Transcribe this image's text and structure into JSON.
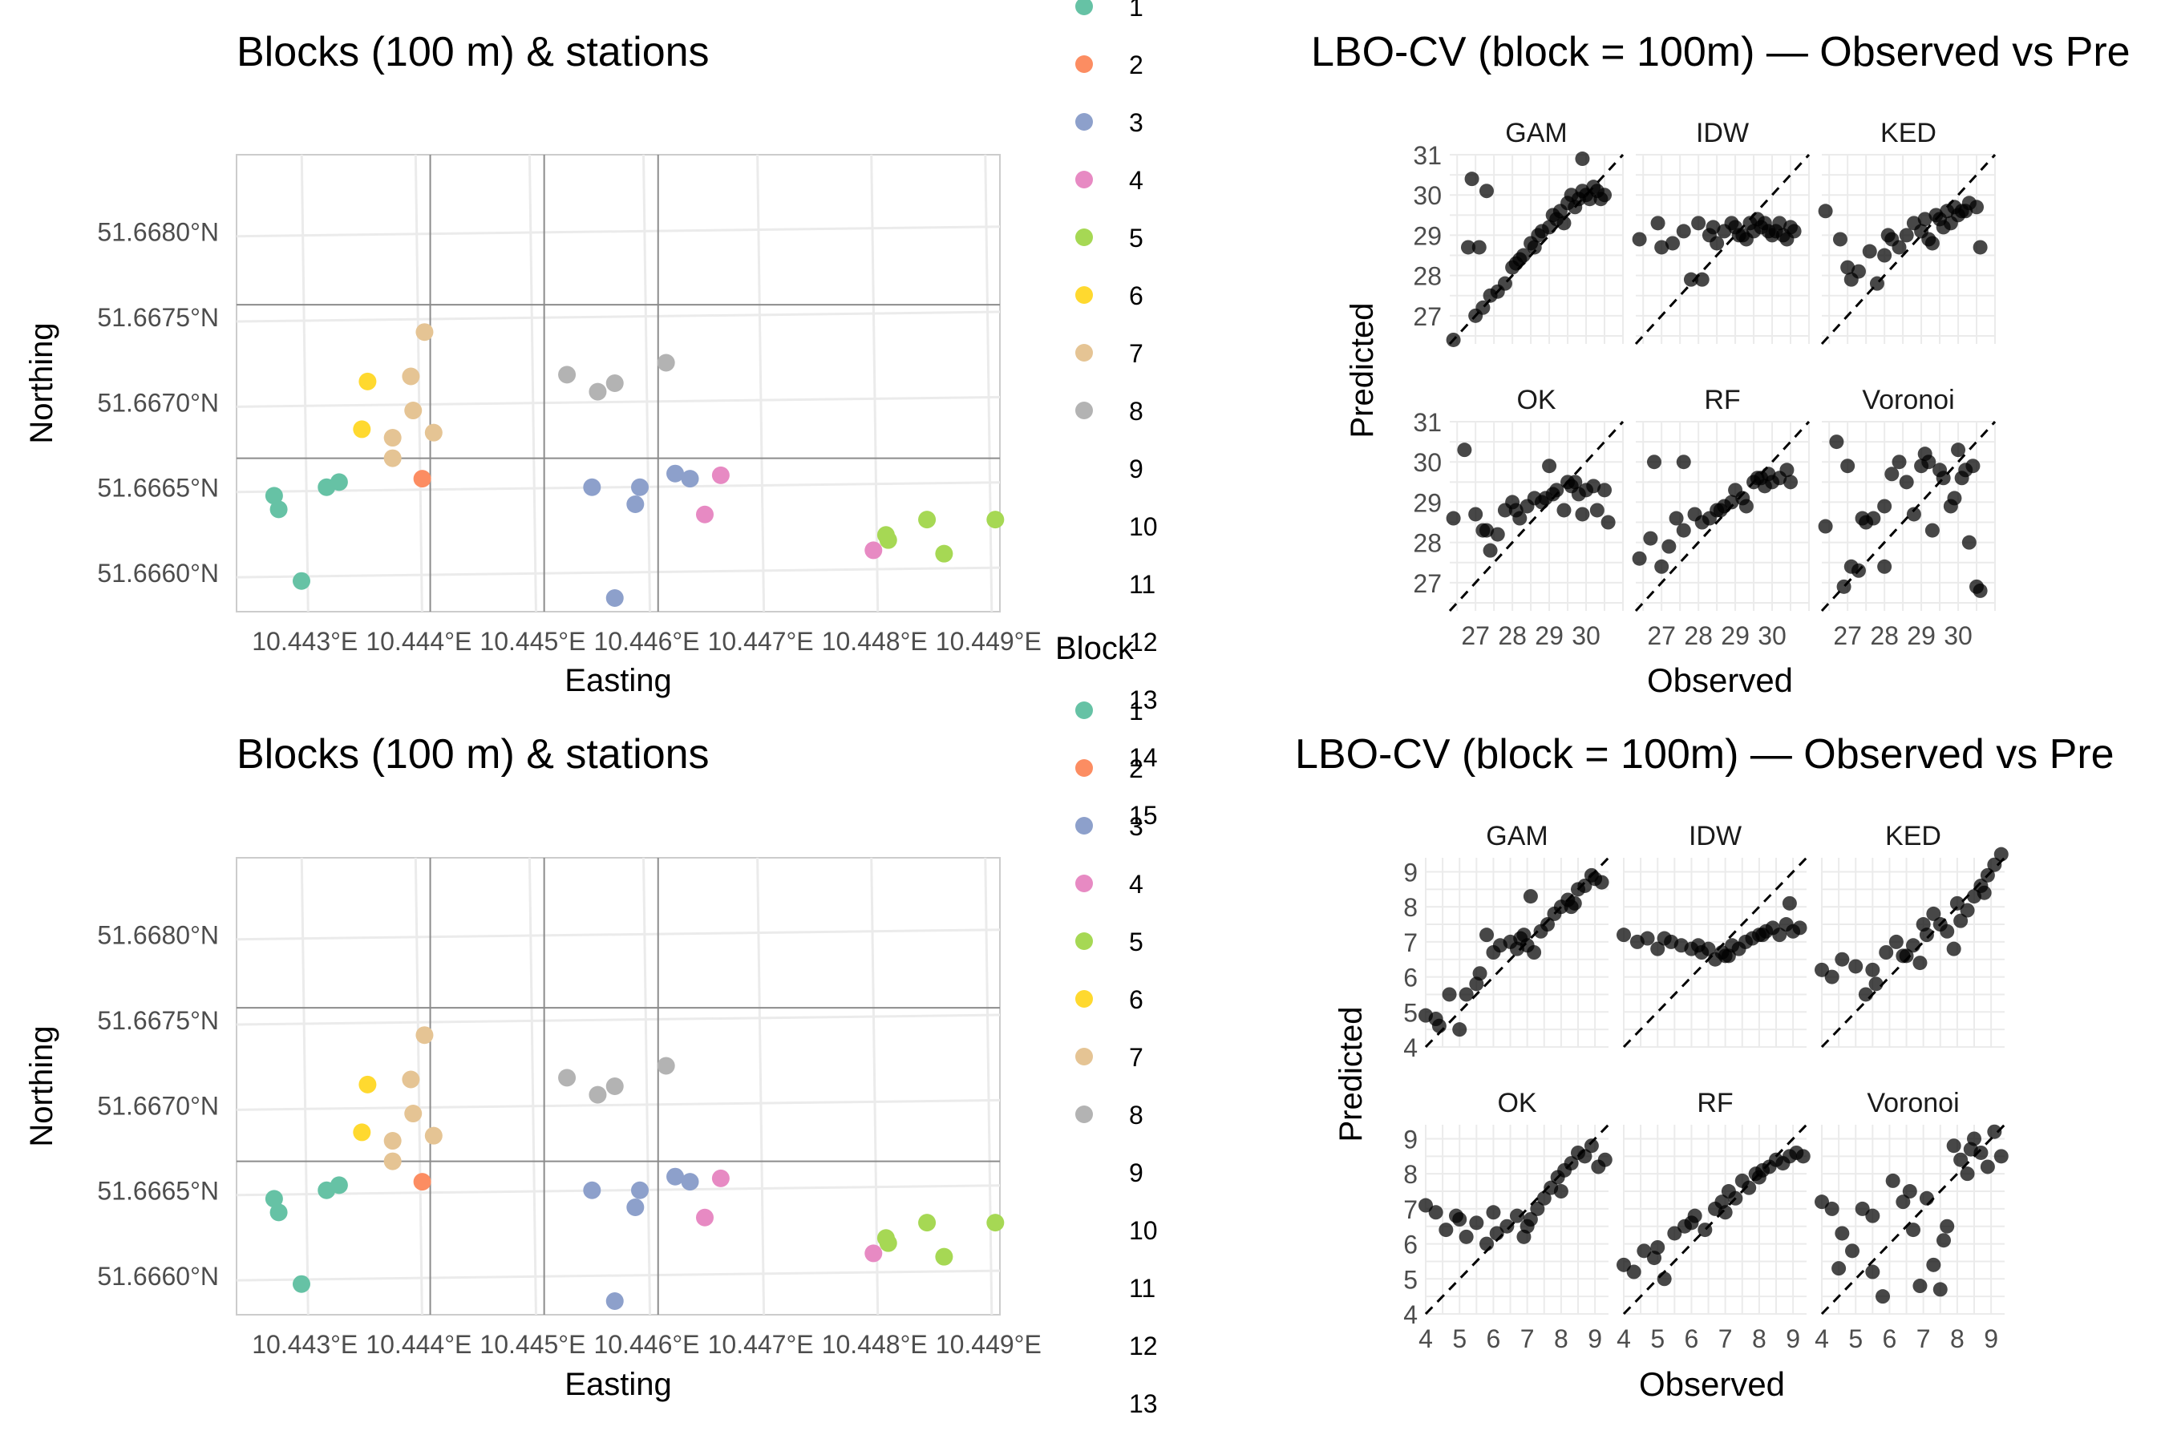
{
  "map_panel": {
    "title": "Blocks (100 m) & stations",
    "xlabel": "Easting",
    "ylabel": "Northing",
    "x_ticks": [
      "10.443°E",
      "10.444°E",
      "10.445°E",
      "10.446°E",
      "10.447°E",
      "10.448°E",
      "10.449°E"
    ],
    "y_ticks": [
      "51.6660°N",
      "51.6665°N",
      "51.6670°N",
      "51.6675°N",
      "51.6680°N"
    ],
    "xlim": [
      10.4424,
      10.4491
    ],
    "ylim": [
      51.66577,
      51.66845
    ],
    "block_lines_x": [
      10.4441,
      10.4451,
      10.4461
    ],
    "block_lines_y": [
      51.66667,
      51.66757
    ]
  },
  "legend": {
    "title": "Block",
    "items": [
      "1",
      "2",
      "3",
      "4",
      "5",
      "6",
      "7",
      "8",
      "9",
      "10",
      "11",
      "12",
      "13",
      "14",
      "15"
    ],
    "colors": [
      "#66c2a5",
      "#fc8d62",
      "#8da0cb",
      "#e78ac3",
      "#a6d854",
      "#ffd92f",
      "#e5c494",
      "#b3b3b3"
    ]
  },
  "scatter_panels": [
    {
      "title": "LBO-CV (block = 100m) — Observed vs Pre",
      "xlabel": "Observed",
      "ylabel": "Predicted",
      "facets": [
        "GAM",
        "IDW",
        "KED",
        "OK",
        "RF",
        "Voronoi"
      ],
      "y_ticks": [
        "27",
        "28",
        "29",
        "30",
        "31"
      ],
      "x_ticks": [
        "27",
        "28",
        "29",
        "30"
      ]
    },
    {
      "title": "LBO-CV (block = 100m) — Observed vs Pre",
      "xlabel": "Observed",
      "ylabel": "Predicted",
      "facets": [
        "GAM",
        "IDW",
        "KED",
        "OK",
        "RF",
        "Voronoi"
      ],
      "y_ticks": [
        "4",
        "5",
        "6",
        "7",
        "8",
        "9"
      ],
      "x_ticks": [
        "4",
        "5",
        "6",
        "7",
        "8",
        "9"
      ]
    }
  ],
  "chart_data": [
    {
      "type": "scatter",
      "title": "Blocks (100 m) & stations",
      "xlabel": "Easting",
      "ylabel": "Northing",
      "legend_title": "Block",
      "xlim": [
        10.4424,
        10.4491
      ],
      "ylim": [
        51.66577,
        51.66845
      ],
      "points": [
        {
          "x": 10.44273,
          "y": 51.66645,
          "block": 1
        },
        {
          "x": 10.44277,
          "y": 51.66637,
          "block": 1
        },
        {
          "x": 10.44319,
          "y": 51.6665,
          "block": 1
        },
        {
          "x": 10.4433,
          "y": 51.66653,
          "block": 1
        },
        {
          "x": 10.44297,
          "y": 51.66595,
          "block": 1
        },
        {
          "x": 10.44403,
          "y": 51.66655,
          "block": 2
        },
        {
          "x": 10.44552,
          "y": 51.6665,
          "block": 3
        },
        {
          "x": 10.4459,
          "y": 51.6664,
          "block": 3
        },
        {
          "x": 10.44594,
          "y": 51.6665,
          "block": 3
        },
        {
          "x": 10.44625,
          "y": 51.66658,
          "block": 3
        },
        {
          "x": 10.44638,
          "y": 51.66655,
          "block": 3
        },
        {
          "x": 10.44572,
          "y": 51.66585,
          "block": 3
        },
        {
          "x": 10.44651,
          "y": 51.66634,
          "block": 4
        },
        {
          "x": 10.44665,
          "y": 51.66657,
          "block": 4
        },
        {
          "x": 10.44799,
          "y": 51.66613,
          "block": 4
        },
        {
          "x": 10.4481,
          "y": 51.66622,
          "block": 5
        },
        {
          "x": 10.44812,
          "y": 51.66619,
          "block": 5
        },
        {
          "x": 10.44846,
          "y": 51.66631,
          "block": 5
        },
        {
          "x": 10.44861,
          "y": 51.66611,
          "block": 5
        },
        {
          "x": 10.44906,
          "y": 51.66631,
          "block": 5
        },
        {
          "x": 10.44355,
          "y": 51.66712,
          "block": 6
        },
        {
          "x": 10.4435,
          "y": 51.66684,
          "block": 6
        },
        {
          "x": 10.44405,
          "y": 51.66741,
          "block": 7
        },
        {
          "x": 10.44393,
          "y": 51.66715,
          "block": 7
        },
        {
          "x": 10.44395,
          "y": 51.66695,
          "block": 7
        },
        {
          "x": 10.44377,
          "y": 51.66679,
          "block": 7
        },
        {
          "x": 10.44377,
          "y": 51.66667,
          "block": 7
        },
        {
          "x": 10.44413,
          "y": 51.66682,
          "block": 7
        },
        {
          "x": 10.4453,
          "y": 51.66716,
          "block": 8
        },
        {
          "x": 10.44557,
          "y": 51.66706,
          "block": 8
        },
        {
          "x": 10.44572,
          "y": 51.66711,
          "block": 8
        },
        {
          "x": 10.44617,
          "y": 51.66723,
          "block": 8
        }
      ]
    },
    {
      "type": "scatter",
      "title": "LBO-CV (block = 100m) — Observed vs Pre",
      "xlabel": "Observed",
      "ylabel": "Predicted",
      "xlim": [
        26.3,
        31.0
      ],
      "ylim": [
        26.3,
        31.0
      ],
      "reference_line": "y = x",
      "facets": [
        {
          "name": "GAM",
          "x": [
            26.4,
            26.8,
            27.0,
            27.2,
            27.4,
            27.6,
            27.8,
            28.0,
            28.1,
            28.2,
            28.3,
            28.5,
            28.6,
            28.7,
            28.8,
            29.0,
            29.1,
            29.2,
            29.3,
            29.4,
            29.5,
            29.6,
            29.7,
            29.8,
            29.9,
            30.0,
            30.1,
            30.2,
            30.3,
            30.4,
            30.5,
            26.9,
            27.3,
            27.1,
            29.9
          ],
          "y": [
            26.4,
            28.7,
            27.0,
            27.2,
            27.5,
            27.6,
            27.8,
            28.2,
            28.3,
            28.4,
            28.5,
            28.8,
            28.7,
            29.0,
            29.1,
            29.2,
            29.5,
            29.4,
            29.6,
            29.3,
            29.8,
            30.0,
            29.7,
            29.9,
            30.1,
            30.0,
            29.9,
            30.2,
            30.1,
            29.9,
            30.0,
            30.4,
            30.1,
            28.7,
            30.9
          ]
        },
        {
          "name": "IDW",
          "x": [
            26.4,
            26.9,
            27.3,
            27.6,
            27.8,
            28.1,
            28.3,
            28.5,
            28.7,
            28.9,
            29.0,
            29.2,
            29.3,
            29.5,
            29.6,
            29.7,
            29.8,
            29.9,
            30.0,
            30.2,
            30.3,
            30.5,
            30.6,
            27.0,
            28.0,
            28.4,
            29.1,
            29.4,
            30.1,
            30.4
          ],
          "y": [
            28.9,
            29.3,
            28.8,
            29.1,
            27.9,
            27.9,
            29.0,
            28.8,
            29.1,
            29.3,
            29.2,
            29.0,
            28.9,
            29.1,
            29.4,
            29.2,
            29.3,
            29.1,
            29.0,
            29.3,
            29.0,
            29.2,
            29.1,
            28.7,
            29.3,
            29.2,
            29.0,
            29.3,
            29.1,
            28.9
          ]
        },
        {
          "name": "KED",
          "x": [
            26.4,
            26.8,
            27.1,
            27.3,
            27.6,
            27.8,
            28.0,
            28.2,
            28.4,
            28.6,
            28.8,
            29.0,
            29.1,
            29.3,
            29.4,
            29.6,
            29.7,
            29.8,
            29.9,
            30.0,
            30.2,
            30.3,
            30.5,
            30.6,
            27.0,
            28.1,
            29.2,
            29.5,
            30.1
          ],
          "y": [
            29.6,
            28.9,
            27.9,
            28.1,
            28.6,
            27.8,
            28.5,
            28.9,
            28.7,
            29.0,
            29.3,
            29.1,
            29.4,
            28.8,
            29.5,
            29.2,
            29.6,
            29.3,
            29.7,
            29.5,
            29.6,
            29.8,
            29.7,
            28.7,
            28.2,
            29.0,
            28.9,
            29.4,
            29.6
          ]
        },
        {
          "name": "OK",
          "x": [
            26.4,
            26.7,
            27.0,
            27.2,
            27.4,
            27.6,
            27.8,
            28.0,
            28.2,
            28.4,
            28.6,
            28.8,
            29.0,
            29.1,
            29.2,
            29.4,
            29.5,
            29.6,
            29.8,
            29.9,
            30.0,
            30.2,
            30.3,
            30.5,
            30.6,
            27.3,
            28.1,
            28.9,
            29.7
          ],
          "y": [
            28.6,
            30.3,
            28.7,
            28.3,
            27.8,
            28.2,
            28.8,
            29.0,
            28.6,
            28.9,
            29.1,
            29.0,
            29.9,
            29.2,
            29.3,
            28.8,
            29.5,
            29.4,
            29.2,
            28.7,
            29.3,
            29.4,
            28.8,
            29.3,
            28.5,
            28.3,
            28.8,
            29.1,
            29.5
          ]
        },
        {
          "name": "RF",
          "x": [
            26.4,
            26.7,
            27.0,
            27.2,
            27.4,
            27.6,
            27.9,
            28.1,
            28.3,
            28.5,
            28.7,
            28.9,
            29.0,
            29.2,
            29.3,
            29.5,
            29.6,
            29.8,
            29.9,
            30.0,
            30.2,
            30.4,
            30.5,
            26.8,
            27.6,
            28.6,
            29.7
          ],
          "y": [
            27.6,
            28.1,
            27.4,
            27.9,
            28.6,
            28.3,
            28.7,
            28.5,
            28.6,
            28.8,
            28.9,
            29.0,
            29.3,
            29.1,
            28.9,
            29.5,
            29.6,
            29.4,
            29.7,
            29.5,
            29.6,
            29.8,
            29.5,
            30.0,
            30.0,
            28.8,
            29.6
          ]
        },
        {
          "name": "Voronoi",
          "x": [
            26.4,
            26.7,
            26.9,
            27.1,
            27.3,
            27.5,
            27.7,
            28.0,
            28.2,
            28.4,
            28.6,
            28.8,
            29.0,
            29.1,
            29.3,
            29.5,
            29.6,
            29.8,
            29.9,
            30.0,
            30.2,
            30.3,
            30.5,
            30.6,
            27.0,
            27.4,
            28.0,
            29.2,
            30.1,
            30.4
          ],
          "y": [
            28.4,
            30.5,
            26.9,
            27.4,
            27.3,
            28.5,
            28.6,
            28.9,
            29.7,
            30.0,
            29.5,
            28.7,
            29.9,
            30.2,
            28.3,
            29.8,
            29.6,
            28.9,
            29.1,
            30.3,
            29.8,
            28.0,
            26.9,
            26.8,
            29.9,
            28.6,
            27.4,
            30.0,
            29.6,
            29.9
          ]
        }
      ]
    },
    {
      "type": "scatter",
      "title": "LBO-CV (block = 100m) — Observed vs Pre",
      "xlabel": "Observed",
      "ylabel": "Predicted",
      "xlim": [
        4.0,
        9.4
      ],
      "ylim": [
        4.0,
        9.4
      ],
      "reference_line": "y = x",
      "facets": [
        {
          "name": "GAM",
          "x": [
            4.0,
            4.3,
            4.4,
            4.7,
            5.0,
            5.2,
            5.5,
            5.6,
            5.8,
            6.0,
            6.2,
            6.5,
            6.7,
            6.9,
            7.0,
            7.2,
            7.4,
            7.6,
            7.8,
            8.0,
            8.2,
            8.4,
            8.5,
            8.7,
            8.9,
            9.0,
            9.2,
            7.1,
            6.8,
            8.3
          ],
          "y": [
            4.9,
            4.8,
            4.6,
            5.5,
            4.5,
            5.5,
            5.8,
            6.1,
            7.2,
            6.7,
            6.9,
            7.0,
            6.8,
            7.2,
            6.9,
            6.7,
            7.3,
            7.5,
            7.8,
            8.0,
            8.2,
            8.1,
            8.5,
            8.6,
            8.9,
            8.8,
            8.7,
            8.3,
            7.1,
            8.0
          ]
        },
        {
          "name": "IDW",
          "x": [
            4.0,
            4.4,
            4.7,
            5.0,
            5.4,
            5.7,
            6.0,
            6.3,
            6.5,
            6.7,
            6.9,
            7.0,
            7.2,
            7.4,
            7.6,
            7.8,
            8.0,
            8.2,
            8.4,
            8.6,
            8.8,
            9.0,
            9.2,
            5.2,
            6.2,
            7.1,
            8.1,
            8.9
          ],
          "y": [
            7.2,
            7.0,
            7.1,
            6.8,
            7.0,
            6.9,
            6.8,
            6.7,
            6.8,
            6.5,
            6.7,
            6.6,
            6.9,
            6.8,
            7.0,
            7.1,
            7.2,
            7.3,
            7.4,
            7.2,
            7.5,
            7.3,
            7.4,
            7.1,
            6.9,
            6.6,
            7.2,
            8.1
          ]
        },
        {
          "name": "KED",
          "x": [
            4.0,
            4.3,
            4.6,
            5.0,
            5.3,
            5.6,
            5.9,
            6.2,
            6.5,
            6.7,
            6.9,
            7.1,
            7.3,
            7.5,
            7.7,
            7.9,
            8.1,
            8.3,
            8.5,
            8.7,
            8.9,
            9.1,
            9.3,
            5.5,
            6.4,
            7.0,
            8.0,
            8.8
          ],
          "y": [
            6.2,
            6.0,
            6.5,
            6.3,
            5.5,
            5.8,
            6.7,
            7.0,
            6.6,
            6.9,
            6.4,
            7.2,
            7.8,
            7.5,
            7.3,
            6.8,
            7.6,
            7.9,
            8.3,
            8.6,
            8.9,
            9.2,
            9.5,
            6.2,
            6.6,
            7.5,
            8.1,
            8.4
          ]
        },
        {
          "name": "OK",
          "x": [
            4.0,
            4.3,
            4.6,
            4.9,
            5.2,
            5.5,
            5.8,
            6.1,
            6.4,
            6.7,
            6.9,
            7.1,
            7.3,
            7.5,
            7.7,
            7.9,
            8.1,
            8.3,
            8.5,
            8.7,
            8.9,
            9.1,
            9.3,
            5.0,
            6.0,
            7.0,
            8.0
          ],
          "y": [
            7.1,
            6.9,
            6.4,
            6.8,
            6.2,
            6.6,
            6.0,
            6.3,
            6.5,
            6.8,
            6.2,
            6.7,
            7.0,
            7.3,
            7.6,
            7.9,
            8.1,
            8.3,
            8.6,
            8.5,
            8.8,
            8.2,
            8.4,
            6.7,
            6.9,
            6.5,
            7.5
          ]
        },
        {
          "name": "RF",
          "x": [
            4.0,
            4.3,
            4.6,
            4.9,
            5.2,
            5.5,
            5.8,
            6.1,
            6.4,
            6.7,
            6.9,
            7.1,
            7.3,
            7.5,
            7.7,
            7.9,
            8.1,
            8.3,
            8.5,
            8.7,
            8.9,
            9.1,
            9.3,
            5.0,
            6.0,
            7.0,
            8.0
          ],
          "y": [
            5.4,
            5.2,
            5.8,
            5.6,
            5.0,
            6.3,
            6.5,
            6.8,
            6.4,
            7.0,
            7.2,
            7.5,
            7.3,
            7.8,
            7.6,
            8.0,
            8.1,
            8.2,
            8.4,
            8.3,
            8.5,
            8.6,
            8.5,
            5.9,
            6.6,
            6.9,
            7.9
          ]
        },
        {
          "name": "Voronoi",
          "x": [
            4.0,
            4.3,
            4.6,
            4.9,
            5.2,
            5.5,
            5.8,
            6.1,
            6.4,
            6.7,
            6.9,
            7.1,
            7.3,
            7.5,
            7.7,
            7.9,
            8.1,
            8.3,
            8.5,
            8.7,
            8.9,
            9.1,
            9.3,
            4.5,
            5.5,
            6.6,
            7.6,
            8.4
          ],
          "y": [
            7.2,
            7.0,
            6.3,
            5.8,
            7.0,
            5.2,
            4.5,
            7.8,
            7.2,
            6.4,
            4.8,
            7.3,
            5.4,
            4.7,
            6.5,
            8.8,
            8.4,
            8.0,
            9.0,
            8.6,
            8.2,
            9.2,
            8.5,
            5.3,
            6.8,
            7.5,
            6.1,
            8.7
          ]
        }
      ]
    }
  ]
}
